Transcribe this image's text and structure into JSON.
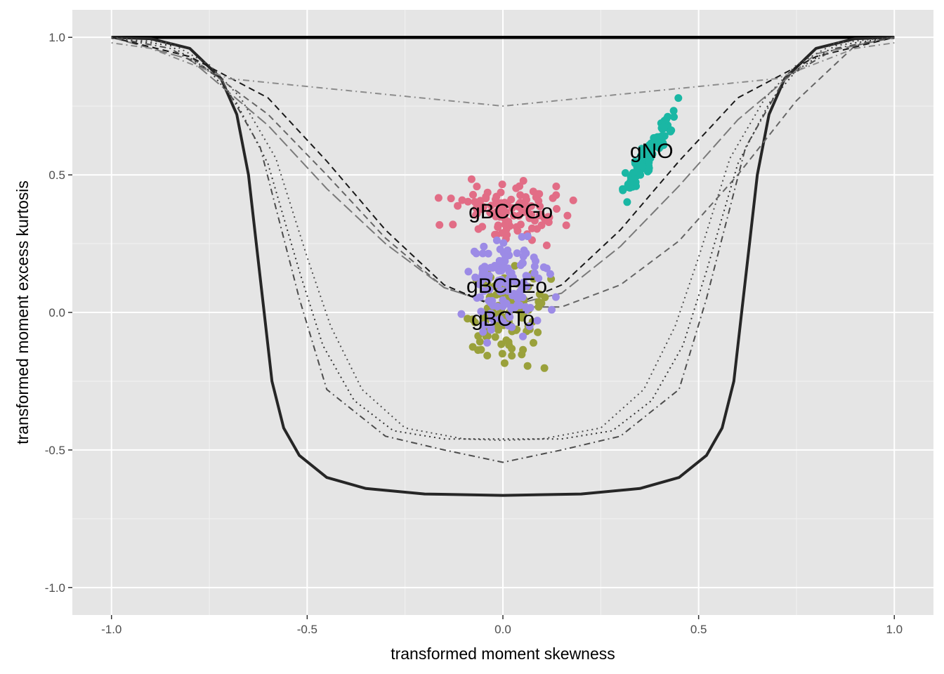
{
  "chart_data": {
    "type": "scatter",
    "title": "",
    "xlabel": "transformed moment skewness",
    "ylabel": "transformed moment excess kurtosis",
    "xlim": [
      -1.1,
      1.1
    ],
    "ylim": [
      -1.1,
      1.1
    ],
    "x_ticks": [
      -1.0,
      -0.5,
      0.0,
      0.5,
      1.0
    ],
    "x_tick_labels": [
      "-1.0",
      "-0.5",
      "0.0",
      "0.5",
      "1.0"
    ],
    "y_ticks": [
      -1.0,
      -0.5,
      0.0,
      0.5,
      1.0
    ],
    "y_tick_labels": [
      "-1.0",
      "-0.5",
      "0.0",
      "0.5",
      "1.0"
    ],
    "grid": true,
    "legend": "none",
    "panel_background": "#e5e5e5",
    "lines": [
      {
        "style": "solid",
        "color": "#000000",
        "width": 4.5,
        "points": [
          [
            -1.0,
            1.0
          ],
          [
            1.0,
            1.0
          ]
        ]
      },
      {
        "style": "solid",
        "color": "#262626",
        "width": 4,
        "points": [
          [
            -1.0,
            1.0
          ],
          [
            -0.9,
            0.995
          ],
          [
            -0.8,
            0.96
          ],
          [
            -0.72,
            0.85
          ],
          [
            -0.68,
            0.72
          ],
          [
            -0.65,
            0.5
          ],
          [
            -0.63,
            0.25
          ],
          [
            -0.61,
            0.0
          ],
          [
            -0.59,
            -0.25
          ],
          [
            -0.56,
            -0.42
          ],
          [
            -0.52,
            -0.52
          ],
          [
            -0.45,
            -0.6
          ],
          [
            -0.35,
            -0.64
          ],
          [
            -0.2,
            -0.66
          ],
          [
            0.0,
            -0.665
          ],
          [
            0.2,
            -0.66
          ],
          [
            0.35,
            -0.64
          ],
          [
            0.45,
            -0.6
          ],
          [
            0.52,
            -0.52
          ],
          [
            0.56,
            -0.42
          ],
          [
            0.59,
            -0.25
          ],
          [
            0.61,
            0.0
          ],
          [
            0.63,
            0.25
          ],
          [
            0.65,
            0.5
          ],
          [
            0.68,
            0.72
          ],
          [
            0.72,
            0.85
          ],
          [
            0.8,
            0.96
          ],
          [
            0.9,
            0.995
          ],
          [
            1.0,
            1.0
          ]
        ]
      },
      {
        "style": "dashed",
        "color": "#666666",
        "width": 2,
        "points": [
          [
            -1.0,
            1.0
          ],
          [
            -0.8,
            0.93
          ],
          [
            -0.6,
            0.72
          ],
          [
            -0.45,
            0.5
          ],
          [
            -0.3,
            0.27
          ],
          [
            -0.15,
            0.09
          ],
          [
            0.0,
            0.02
          ],
          [
            0.15,
            0.02
          ],
          [
            0.3,
            0.1
          ],
          [
            0.45,
            0.26
          ],
          [
            0.6,
            0.5
          ],
          [
            0.75,
            0.77
          ],
          [
            0.9,
            0.97
          ],
          [
            1.0,
            1.0
          ]
        ]
      },
      {
        "style": "longdash",
        "color": "#7a7a7a",
        "width": 2,
        "points": [
          [
            -1.0,
            1.0
          ],
          [
            -0.8,
            0.92
          ],
          [
            -0.6,
            0.68
          ],
          [
            -0.45,
            0.45
          ],
          [
            -0.3,
            0.25
          ],
          [
            -0.15,
            0.09
          ],
          [
            0.0,
            0.02
          ],
          [
            0.15,
            0.07
          ],
          [
            0.3,
            0.24
          ],
          [
            0.45,
            0.46
          ],
          [
            0.6,
            0.7
          ],
          [
            0.8,
            0.94
          ],
          [
            1.0,
            1.0
          ]
        ]
      },
      {
        "style": "dashed",
        "color": "#1a1a1a",
        "width": 2,
        "points": [
          [
            -1.0,
            1.0
          ],
          [
            -0.8,
            0.93
          ],
          [
            -0.6,
            0.78
          ],
          [
            -0.45,
            0.55
          ],
          [
            -0.3,
            0.3
          ],
          [
            -0.15,
            0.1
          ],
          [
            0.0,
            0.01
          ],
          [
            0.15,
            0.1
          ],
          [
            0.3,
            0.3
          ],
          [
            0.45,
            0.55
          ],
          [
            0.6,
            0.78
          ],
          [
            0.8,
            0.93
          ],
          [
            1.0,
            1.0
          ]
        ]
      },
      {
        "style": "dotted",
        "color": "#333333",
        "width": 2,
        "points": [
          [
            -1.0,
            1.0
          ],
          [
            -0.85,
            0.97
          ],
          [
            -0.75,
            0.88
          ],
          [
            -0.68,
            0.76
          ],
          [
            -0.6,
            0.54
          ],
          [
            -0.52,
            0.15
          ],
          [
            -0.46,
            -0.12
          ],
          [
            -0.38,
            -0.32
          ],
          [
            -0.28,
            -0.43
          ],
          [
            -0.15,
            -0.46
          ],
          [
            0.0,
            -0.46
          ],
          [
            0.15,
            -0.46
          ],
          [
            0.28,
            -0.43
          ],
          [
            0.38,
            -0.32
          ],
          [
            0.46,
            -0.12
          ],
          [
            0.52,
            0.15
          ],
          [
            0.6,
            0.54
          ],
          [
            0.68,
            0.76
          ],
          [
            0.75,
            0.88
          ],
          [
            0.85,
            0.97
          ],
          [
            1.0,
            1.0
          ]
        ]
      },
      {
        "style": "dotted",
        "color": "#4d4d4d",
        "width": 2,
        "points": [
          [
            -1.0,
            1.0
          ],
          [
            -0.85,
            0.98
          ],
          [
            -0.75,
            0.9
          ],
          [
            -0.67,
            0.78
          ],
          [
            -0.58,
            0.56
          ],
          [
            -0.5,
            0.2
          ],
          [
            -0.44,
            -0.05
          ],
          [
            -0.36,
            -0.28
          ],
          [
            -0.25,
            -0.42
          ],
          [
            -0.1,
            -0.46
          ],
          [
            0.0,
            -0.465
          ],
          [
            0.1,
            -0.46
          ],
          [
            0.25,
            -0.42
          ],
          [
            0.36,
            -0.28
          ],
          [
            0.44,
            -0.05
          ],
          [
            0.5,
            0.2
          ],
          [
            0.58,
            0.56
          ],
          [
            0.67,
            0.78
          ],
          [
            0.75,
            0.9
          ],
          [
            0.85,
            0.98
          ],
          [
            1.0,
            1.0
          ]
        ]
      },
      {
        "style": "dotdash",
        "color": "#4d4d4d",
        "width": 2,
        "points": [
          [
            -1.0,
            1.0
          ],
          [
            -0.85,
            0.96
          ],
          [
            -0.72,
            0.85
          ],
          [
            -0.62,
            0.6
          ],
          [
            -0.52,
            0.05
          ],
          [
            -0.45,
            -0.28
          ],
          [
            -0.3,
            -0.45
          ],
          [
            -0.15,
            -0.5
          ],
          [
            0.0,
            -0.545
          ],
          [
            0.15,
            -0.5
          ],
          [
            0.3,
            -0.45
          ],
          [
            0.45,
            -0.28
          ],
          [
            0.52,
            0.05
          ],
          [
            0.62,
            0.6
          ],
          [
            0.72,
            0.85
          ],
          [
            0.85,
            0.96
          ],
          [
            1.0,
            1.0
          ]
        ]
      },
      {
        "style": "dotdash",
        "color": "#8c8c8c",
        "width": 2,
        "points": [
          [
            -1.0,
            0.98
          ],
          [
            -0.9,
            0.96
          ],
          [
            -0.7,
            0.85
          ],
          [
            0.0,
            0.75
          ],
          [
            0.7,
            0.85
          ],
          [
            0.9,
            0.96
          ],
          [
            1.0,
            0.98
          ]
        ]
      }
    ],
    "series": [
      {
        "name": "gBCCGo",
        "color": "#e26d86",
        "center": [
          0.02,
          0.37
        ],
        "spread": [
          0.07,
          0.05
        ],
        "n": 110,
        "label_at": [
          0.02,
          0.37
        ]
      },
      {
        "name": "gNO",
        "color": "#1ab7a4",
        "center": [
          0.37,
          0.57
        ],
        "spread": [
          0.035,
          0.05
        ],
        "n": 90,
        "label_at": [
          0.38,
          0.59
        ]
      },
      {
        "name": "gBCTo",
        "color": "#9aa13b",
        "center": [
          0.0,
          -0.02
        ],
        "spread": [
          0.05,
          0.09
        ],
        "n": 110,
        "label_at": [
          0.0,
          -0.02
        ]
      },
      {
        "name": "gBCPEo",
        "color": "#9c8be6",
        "center": [
          0.01,
          0.1
        ],
        "spread": [
          0.05,
          0.09
        ],
        "n": 120,
        "label_at": [
          0.01,
          0.1
        ]
      }
    ]
  }
}
